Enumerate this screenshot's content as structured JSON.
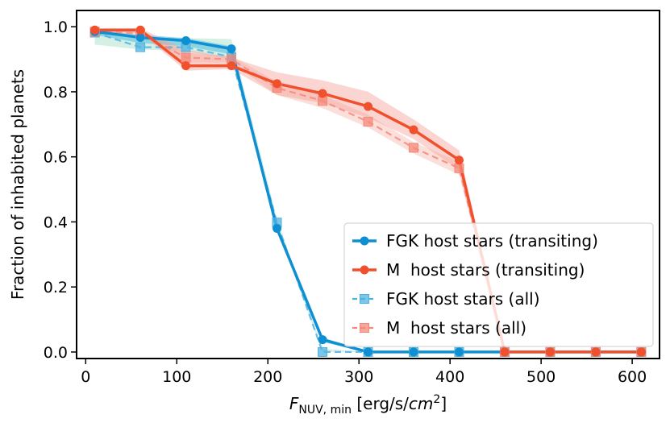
{
  "chart_data": {
    "type": "line",
    "title": "",
    "xlabel": {
      "base": "F",
      "sub": "NUV, min",
      "rest": " [erg/s/",
      "unit_italic": "cm",
      "sup": "2",
      "close": "]"
    },
    "ylabel": "Fraction of inhabited planets",
    "xlim": [
      -10,
      630
    ],
    "ylim": [
      -0.02,
      1.05
    ],
    "xticks": [
      0,
      100,
      200,
      300,
      400,
      500,
      600
    ],
    "yticks": [
      0.0,
      0.2,
      0.4,
      0.6,
      0.8,
      1.0
    ],
    "xtick_labels": [
      "0",
      "100",
      "200",
      "300",
      "400",
      "500",
      "600"
    ],
    "ytick_labels": [
      "0.0",
      "0.2",
      "0.4",
      "0.6",
      "0.8",
      "1.0"
    ],
    "legend_position": "lower-right",
    "series": [
      {
        "name": "FGK host stars (transiting)",
        "color": "#0e8fd3",
        "marker": "circle",
        "dash": "solid",
        "x": [
          10,
          60,
          110,
          160,
          210,
          260,
          310,
          360,
          410,
          460,
          510,
          560,
          610
        ],
        "y": [
          0.985,
          0.967,
          0.957,
          0.932,
          0.38,
          0.038,
          0.0,
          0.0,
          0.0,
          0.0,
          0.0,
          0.0,
          0.0
        ],
        "band_color": "#35b3e0",
        "band_lower": [
          0.975,
          0.95,
          0.94,
          0.915,
          0.37,
          0.03,
          0.0,
          0.0,
          0.0,
          0.0,
          0.0,
          0.0,
          0.0
        ],
        "band_upper": [
          0.99,
          0.975,
          0.965,
          0.94,
          0.39,
          0.045,
          0.0,
          0.0,
          0.0,
          0.0,
          0.0,
          0.0,
          0.0
        ]
      },
      {
        "name": "M  host stars (transiting)",
        "color": "#f0502b",
        "marker": "circle",
        "dash": "solid",
        "x": [
          10,
          60,
          110,
          160,
          210,
          260,
          310,
          360,
          410,
          460,
          510,
          560,
          610
        ],
        "y": [
          0.99,
          0.99,
          0.88,
          0.88,
          0.825,
          0.795,
          0.755,
          0.683,
          0.59,
          0.0,
          0.0,
          0.0,
          0.0
        ],
        "band_color": "#f4a29a",
        "band_lower": [
          0.985,
          0.98,
          0.865,
          0.87,
          0.79,
          0.765,
          0.72,
          0.655,
          0.56,
          0.0,
          0.0,
          0.0,
          0.0
        ],
        "band_upper": [
          0.995,
          0.995,
          0.93,
          0.905,
          0.86,
          0.835,
          0.8,
          0.715,
          0.62,
          0.0,
          0.0,
          0.0,
          0.0
        ]
      },
      {
        "name": "FGK host stars (all)",
        "color": "#4fb3e2",
        "marker": "square",
        "dash": "dashed",
        "x": [
          10,
          60,
          110,
          160,
          210,
          260,
          310,
          360,
          410,
          460,
          510,
          560,
          610
        ],
        "y": [
          0.982,
          0.937,
          0.937,
          0.907,
          0.398,
          0.0,
          0.0,
          0.0,
          0.0,
          0.0,
          0.0,
          0.0,
          0.0
        ],
        "band_color": "#9fdcc4",
        "band_lower": [
          0.945,
          0.93,
          0.925,
          0.9,
          0.385,
          0.0,
          0.0,
          0.0,
          0.0,
          0.0,
          0.0,
          0.0,
          0.0
        ],
        "band_upper": [
          0.99,
          0.97,
          0.965,
          0.962,
          0.41,
          0.01,
          0.0,
          0.0,
          0.0,
          0.0,
          0.0,
          0.0,
          0.0
        ]
      },
      {
        "name": "M  host stars (all)",
        "color": "#f4897a",
        "marker": "square",
        "dash": "dashed",
        "x": [
          10,
          60,
          110,
          160,
          210,
          260,
          310,
          360,
          410,
          460,
          510,
          560,
          610
        ],
        "y": [
          0.985,
          0.98,
          0.905,
          0.9,
          0.812,
          0.772,
          0.708,
          0.628,
          0.565,
          0.0,
          0.0,
          0.0,
          0.0
        ],
        "band_color": "#f7b7ae",
        "band_lower": [
          0.975,
          0.975,
          0.89,
          0.89,
          0.79,
          0.75,
          0.69,
          0.61,
          0.545,
          0.0,
          0.0,
          0.0,
          0.0
        ],
        "band_upper": [
          0.99,
          0.99,
          0.92,
          0.91,
          0.83,
          0.79,
          0.73,
          0.645,
          0.585,
          0.0,
          0.0,
          0.0,
          0.0
        ]
      }
    ]
  }
}
